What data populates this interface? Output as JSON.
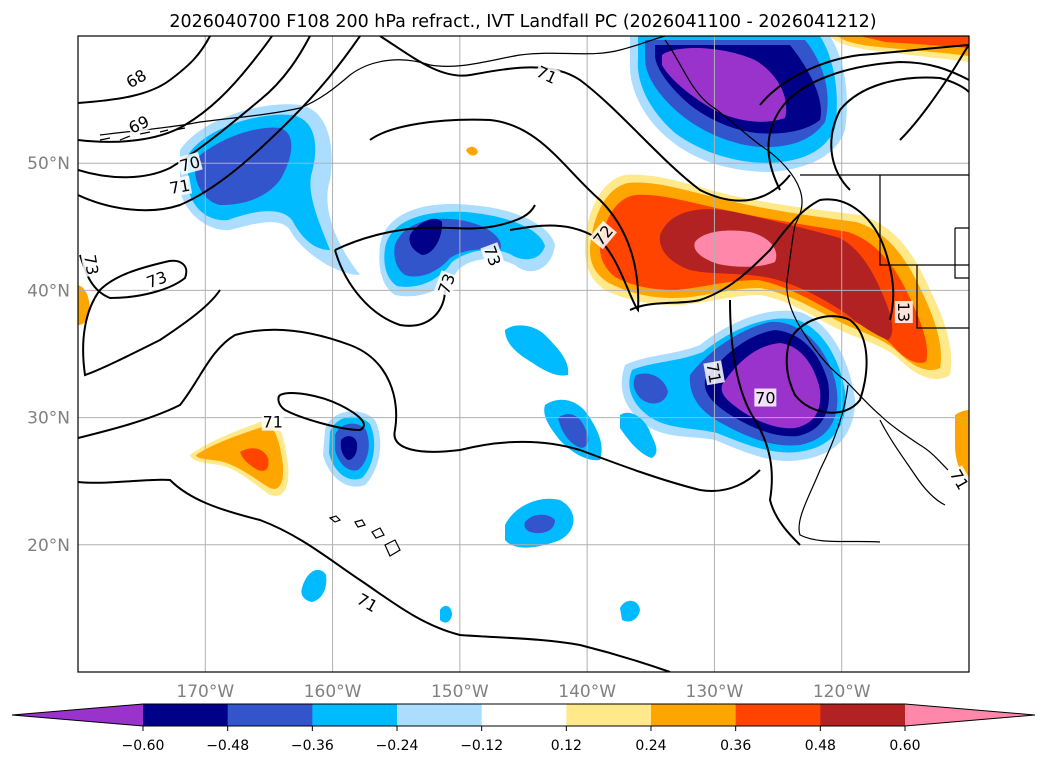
{
  "title": "2026040700 F108 200 hPa refract., IVT Landfall PC (2026041100 - 2026041212)",
  "lon_ticks": [
    {
      "lon": -170,
      "label": "170°W"
    },
    {
      "lon": -160,
      "label": "160°W"
    },
    {
      "lon": -150,
      "label": "150°W"
    },
    {
      "lon": -140,
      "label": "140°W"
    },
    {
      "lon": -130,
      "label": "130°W"
    },
    {
      "lon": -120,
      "label": "120°W"
    }
  ],
  "lat_ticks": [
    {
      "lat": 50,
      "label": "50°N"
    },
    {
      "lat": 40,
      "label": "40°N"
    },
    {
      "lat": 30,
      "label": "30°N"
    },
    {
      "lat": 20,
      "label": "20°N"
    }
  ],
  "map_extent": {
    "lon_min": -180,
    "lon_max": -110,
    "lat_min": 10,
    "lat_max": 60
  },
  "colorbar": {
    "ticks": [
      "−0.60",
      "−0.48",
      "−0.36",
      "−0.24",
      "−0.12",
      "0.12",
      "0.24",
      "0.36",
      "0.48",
      "0.60"
    ],
    "colors": [
      "#9933cc",
      "#000088",
      "#3355cc",
      "#00bbff",
      "#aaddff",
      "#ffffff",
      "#ffe98a",
      "#ffa500",
      "#ff4400",
      "#b22222",
      "#ff88aa"
    ],
    "extend": "both"
  },
  "contour_labels": [
    {
      "text": "68",
      "lon": -175.4,
      "lat": 56.6,
      "rot": -30
    },
    {
      "text": "69",
      "lon": -175.2,
      "lat": 53.0,
      "rot": -25
    },
    {
      "text": "70",
      "lon": -171.2,
      "lat": 49.9,
      "rot": -15
    },
    {
      "text": "71",
      "lon": -172.0,
      "lat": 48.1,
      "rot": -10
    },
    {
      "text": "71",
      "lon": -143.2,
      "lat": 56.9,
      "rot": 25
    },
    {
      "text": "73",
      "lon": -179.0,
      "lat": 42.0,
      "rot": 80
    },
    {
      "text": "73",
      "lon": -173.8,
      "lat": 40.8,
      "rot": -20
    },
    {
      "text": "73",
      "lon": -147.5,
      "lat": 42.7,
      "rot": 70
    },
    {
      "text": "73",
      "lon": -151.0,
      "lat": 40.5,
      "rot": -70
    },
    {
      "text": "72",
      "lon": -138.7,
      "lat": 44.3,
      "rot": -50
    },
    {
      "text": "71",
      "lon": -130.1,
      "lat": 33.5,
      "rot": 80
    },
    {
      "text": "70",
      "lon": -126.0,
      "lat": 31.5,
      "rot": 0
    },
    {
      "text": "71",
      "lon": -164.7,
      "lat": 29.6,
      "rot": 0
    },
    {
      "text": "71",
      "lon": -157.3,
      "lat": 15.4,
      "rot": 30
    },
    {
      "text": "71",
      "lon": -110.8,
      "lat": 25.1,
      "rot": 60
    },
    {
      "text": "13",
      "lon": -115.2,
      "lat": 38.3,
      "rot": 90
    }
  ]
}
